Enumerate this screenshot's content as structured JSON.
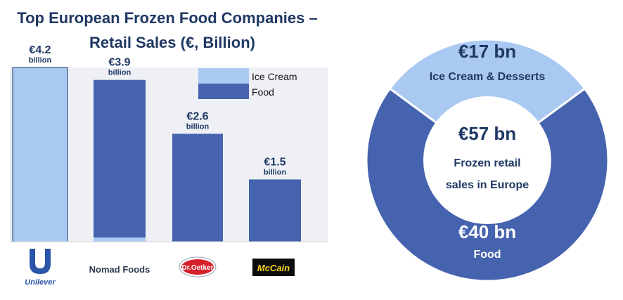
{
  "title_line1": "Top European Frozen Food Companies –",
  "title_line2": "Retail Sales (€, Billion)",
  "legend": [
    {
      "label": "Ice Cream",
      "color": "#a9c9f2"
    },
    {
      "label": "Food",
      "color": "#4563ae"
    }
  ],
  "companies": [
    {
      "name": "Unilever",
      "value_label": "€4.2",
      "unit": "billion"
    },
    {
      "name": "Nomad Foods",
      "value_label": "€3.9",
      "unit": "billion"
    },
    {
      "name": "Dr.Oetker",
      "value_label": "€2.6",
      "unit": "billion"
    },
    {
      "name": "McCain",
      "value_label": "€1.5",
      "unit": "billion"
    }
  ],
  "donut": {
    "center_value": "€57 bn",
    "center_line1": "Frozen retail",
    "center_line2": "sales in Europe",
    "segments": [
      {
        "value_label": "€17 bn",
        "label": "Ice Cream & Desserts",
        "color": "#a9c9f2",
        "text_color": "#1f3864"
      },
      {
        "value_label": "€40 bn",
        "label": "Food",
        "color": "#4563ae",
        "text_color": "#ffffff"
      }
    ]
  },
  "chart_data": [
    {
      "type": "bar",
      "title": "Top European Frozen Food Companies – Retail Sales (€, Billion)",
      "categories": [
        "Unilever",
        "Nomad Foods",
        "Dr.Oetker",
        "McCain"
      ],
      "series": [
        {
          "name": "Ice Cream",
          "values": [
            4.2,
            0.1,
            0,
            0
          ]
        },
        {
          "name": "Food",
          "values": [
            0,
            3.8,
            2.6,
            1.5
          ]
        }
      ],
      "ylim": [
        0,
        4.2
      ],
      "legend": "top-right",
      "grid": false
    },
    {
      "type": "pie",
      "labels": [
        "Ice Cream & Desserts",
        "Food"
      ],
      "values": [
        17,
        40
      ],
      "total": 57
    }
  ]
}
